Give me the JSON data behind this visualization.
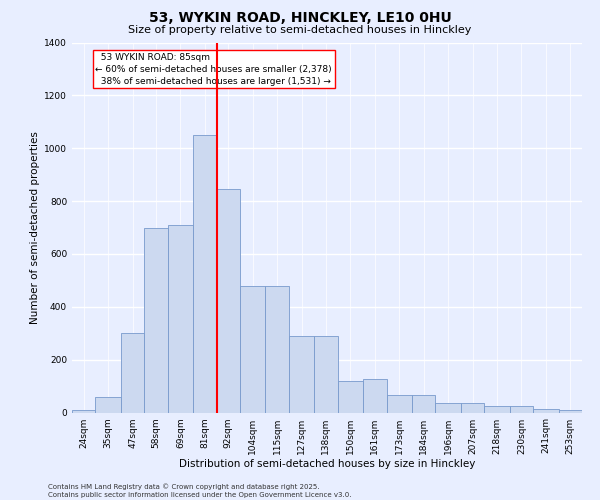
{
  "title": "53, WYKIN ROAD, HINCKLEY, LE10 0HU",
  "subtitle": "Size of property relative to semi-detached houses in Hinckley",
  "xlabel": "Distribution of semi-detached houses by size in Hinckley",
  "ylabel": "Number of semi-detached properties",
  "categories": [
    "24sqm",
    "35sqm",
    "47sqm",
    "58sqm",
    "69sqm",
    "81sqm",
    "92sqm",
    "104sqm",
    "115sqm",
    "127sqm",
    "138sqm",
    "150sqm",
    "161sqm",
    "173sqm",
    "184sqm",
    "196sqm",
    "207sqm",
    "218sqm",
    "230sqm",
    "241sqm",
    "253sqm"
  ],
  "bar_heights": [
    10,
    60,
    300,
    700,
    710,
    1050,
    845,
    480,
    480,
    290,
    290,
    120,
    125,
    65,
    65,
    35,
    35,
    25,
    25,
    12,
    10
  ],
  "property_label": "53 WYKIN ROAD: 85sqm",
  "pct_smaller": 60,
  "pct_larger": 38,
  "n_smaller": 2378,
  "n_larger": 1531,
  "bar_color": "#ccd9f0",
  "bar_edge_color": "#7799cc",
  "vline_color": "red",
  "ylim": [
    0,
    1400
  ],
  "yticks": [
    0,
    200,
    400,
    600,
    800,
    1000,
    1200,
    1400
  ],
  "background_color": "#e8eeff",
  "grid_color": "#ffffff",
  "title_fontsize": 10,
  "subtitle_fontsize": 8,
  "axis_fontsize": 7.5,
  "tick_fontsize": 6.5,
  "ann_fontsize": 6.5,
  "footer_text": "Contains HM Land Registry data © Crown copyright and database right 2025.\nContains public sector information licensed under the Open Government Licence v3.0.",
  "bin_edges": [
    18,
    29,
    41,
    52,
    63,
    75,
    86,
    97,
    109,
    120,
    132,
    143,
    155,
    166,
    178,
    189,
    201,
    212,
    224,
    235,
    247,
    258
  ]
}
